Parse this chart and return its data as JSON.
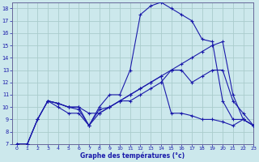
{
  "xlabel": "Graphe des températures (°c)",
  "background_color": "#cce8ec",
  "grid_color": "#aacccc",
  "line_color": "#1a1aaa",
  "xlim": [
    -0.5,
    23
  ],
  "ylim": [
    7,
    18.5
  ],
  "xticks": [
    0,
    1,
    2,
    3,
    4,
    5,
    6,
    7,
    8,
    9,
    10,
    11,
    12,
    13,
    14,
    15,
    16,
    17,
    18,
    19,
    20,
    21,
    22,
    23
  ],
  "yticks": [
    7,
    8,
    9,
    10,
    11,
    12,
    13,
    14,
    15,
    16,
    17,
    18
  ],
  "line1_x": [
    0,
    1,
    2,
    3,
    4,
    5,
    6,
    7,
    8,
    9,
    10,
    11,
    12,
    13,
    14,
    15,
    16,
    17,
    18,
    19,
    20,
    21,
    22,
    23
  ],
  "line1_y": [
    7.0,
    7.0,
    9.0,
    10.5,
    10.3,
    10.0,
    9.8,
    8.5,
    10.0,
    11.0,
    11.0,
    13.0,
    17.5,
    18.2,
    18.5,
    18.0,
    17.5,
    17.0,
    15.5,
    15.3,
    10.5,
    9.0,
    9.0,
    8.5
  ],
  "line2_x": [
    0,
    1,
    2,
    3,
    4,
    5,
    6,
    7,
    8,
    9,
    10,
    11,
    12,
    13,
    14,
    15,
    16,
    17,
    18,
    19,
    20,
    21,
    22,
    23
  ],
  "line2_y": [
    7.0,
    7.0,
    9.0,
    10.5,
    10.3,
    10.0,
    10.0,
    9.5,
    9.5,
    10.0,
    10.5,
    11.0,
    11.5,
    12.0,
    12.5,
    13.0,
    13.5,
    14.0,
    14.5,
    15.0,
    15.3,
    11.0,
    9.0,
    8.5
  ],
  "line3_x": [
    0,
    1,
    2,
    3,
    4,
    5,
    6,
    7,
    8,
    9,
    10,
    11,
    12,
    13,
    14,
    15,
    16,
    17,
    18,
    19,
    20,
    21,
    22,
    23
  ],
  "line3_y": [
    7.0,
    7.0,
    9.0,
    10.5,
    10.0,
    9.5,
    9.5,
    8.5,
    9.5,
    10.0,
    10.5,
    11.0,
    11.5,
    12.0,
    12.5,
    9.5,
    9.5,
    9.3,
    9.0,
    9.0,
    8.8,
    8.5,
    9.0,
    8.5
  ],
  "line4_x": [
    3,
    4,
    5,
    6,
    7,
    8,
    9,
    10,
    11,
    12,
    13,
    14,
    15,
    16,
    17,
    18,
    19,
    20,
    21,
    22,
    23
  ],
  "line4_y": [
    10.5,
    10.3,
    10.0,
    10.0,
    8.5,
    9.8,
    10.0,
    10.5,
    10.5,
    11.0,
    11.5,
    12.0,
    13.0,
    13.0,
    12.0,
    12.5,
    13.0,
    13.0,
    10.5,
    9.5,
    8.5
  ]
}
